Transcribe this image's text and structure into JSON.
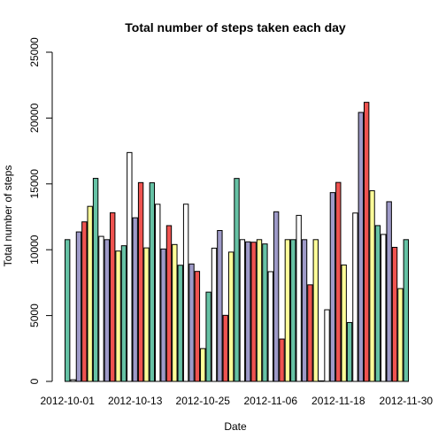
{
  "chart_data": {
    "type": "bar",
    "title": "Total number of steps taken each day",
    "xlabel": "Date",
    "ylabel": "Total number of steps",
    "ylim": [
      0,
      25000
    ],
    "y_ticks": [
      0,
      5000,
      10000,
      15000,
      20000,
      25000
    ],
    "x_tick_labels": [
      "2012-10-01",
      "2012-10-13",
      "2012-10-25",
      "2012-11-06",
      "2012-11-18",
      "2012-11-30"
    ],
    "x_tick_indices": [
      0,
      12,
      24,
      36,
      48,
      60
    ],
    "palette": [
      "#66C2A5",
      "#FFFFFF",
      "#9E9AC8",
      "#EF5350",
      "#FFFF99"
    ],
    "categories": [
      "2012-10-01",
      "2012-10-02",
      "2012-10-03",
      "2012-10-04",
      "2012-10-05",
      "2012-10-06",
      "2012-10-07",
      "2012-10-08",
      "2012-10-09",
      "2012-10-10",
      "2012-10-11",
      "2012-10-12",
      "2012-10-13",
      "2012-10-14",
      "2012-10-15",
      "2012-10-16",
      "2012-10-17",
      "2012-10-18",
      "2012-10-19",
      "2012-10-20",
      "2012-10-21",
      "2012-10-22",
      "2012-10-23",
      "2012-10-24",
      "2012-10-25",
      "2012-10-26",
      "2012-10-27",
      "2012-10-28",
      "2012-10-29",
      "2012-10-30",
      "2012-10-31",
      "2012-11-01",
      "2012-11-02",
      "2012-11-03",
      "2012-11-04",
      "2012-11-05",
      "2012-11-06",
      "2012-11-07",
      "2012-11-08",
      "2012-11-09",
      "2012-11-10",
      "2012-11-11",
      "2012-11-12",
      "2012-11-13",
      "2012-11-14",
      "2012-11-15",
      "2012-11-16",
      "2012-11-17",
      "2012-11-18",
      "2012-11-19",
      "2012-11-20",
      "2012-11-21",
      "2012-11-22",
      "2012-11-23",
      "2012-11-24",
      "2012-11-25",
      "2012-11-26",
      "2012-11-27",
      "2012-11-28",
      "2012-11-29",
      "2012-11-30"
    ],
    "values": [
      10766,
      126,
      11352,
      12116,
      13294,
      15420,
      11015,
      10766,
      12811,
      9900,
      10304,
      17382,
      12426,
      15098,
      10139,
      15084,
      13452,
      10056,
      11829,
      10395,
      8821,
      13460,
      8918,
      8355,
      2492,
      6778,
      10119,
      11458,
      5018,
      9819,
      15414,
      10766,
      10600,
      10571,
      10766,
      10439,
      8334,
      12883,
      3219,
      10766,
      10766,
      12608,
      10765,
      7336,
      10766,
      41,
      5441,
      14339,
      15110,
      8841,
      4472,
      12787,
      20427,
      21194,
      14478,
      11834,
      11162,
      13646,
      10183,
      7047,
      10766
    ]
  }
}
